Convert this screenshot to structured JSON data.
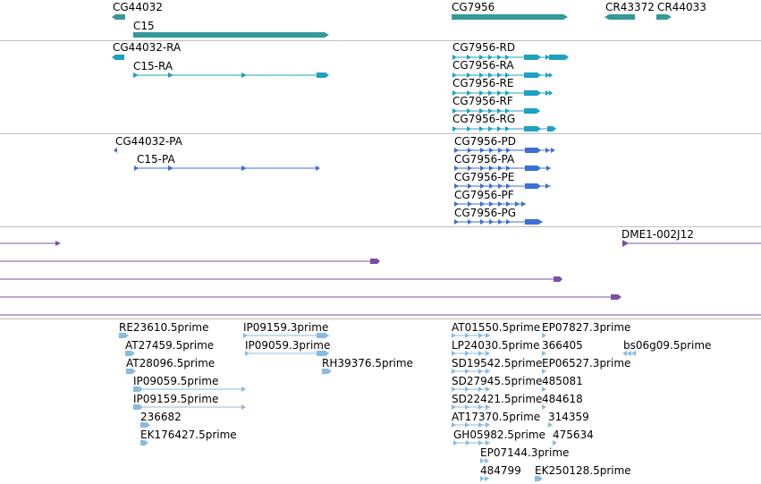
{
  "colors": {
    "gene": "#339999",
    "transcript": "#1fa1c1",
    "protein": "#3a6fd3",
    "alignment": "#7b4fa8",
    "est": "#88bbe0",
    "separator": "#bdbdbd"
  },
  "tracks": {
    "genes": [
      {
        "label": "CG44032",
        "key": "cg44032"
      },
      {
        "label": "C15",
        "key": "c15"
      },
      {
        "label": "CG7956",
        "key": "cg7956"
      },
      {
        "label": "CR43372",
        "key": "cr43372"
      },
      {
        "label": "CR44033",
        "key": "cr44033"
      }
    ],
    "transcripts": [
      {
        "label": "CG44032-RA",
        "key": "cg44032-ra"
      },
      {
        "label": "C15-RA",
        "key": "c15-ra"
      },
      {
        "label": "CG7956-RD",
        "key": "cg7956-rd"
      },
      {
        "label": "CG7956-RA",
        "key": "cg7956-ra"
      },
      {
        "label": "CG7956-RE",
        "key": "cg7956-re"
      },
      {
        "label": "CG7956-RF",
        "key": "cg7956-rf"
      },
      {
        "label": "CG7956-RG",
        "key": "cg7956-rg"
      }
    ],
    "proteins": [
      {
        "label": "CG44032-PA",
        "key": "cg44032-pa"
      },
      {
        "label": "C15-PA",
        "key": "c15-pa"
      },
      {
        "label": "CG7956-PD",
        "key": "cg7956-pd"
      },
      {
        "label": "CG7956-PA",
        "key": "cg7956-pa"
      },
      {
        "label": "CG7956-PE",
        "key": "cg7956-pe"
      },
      {
        "label": "CG7956-PF",
        "key": "cg7956-pf"
      },
      {
        "label": "CG7956-PG",
        "key": "cg7956-pg"
      }
    ],
    "alignments": [
      {
        "label": "DME1-002J12",
        "key": "dme1-002j12"
      }
    ],
    "ests": [
      {
        "label": "RE23610.5prime",
        "key": "re23610"
      },
      {
        "label": "AT27459.5prime",
        "key": "at27459"
      },
      {
        "label": "AT28096.5prime",
        "key": "at28096"
      },
      {
        "label": "IP09059.5prime",
        "key": "ip09059-5"
      },
      {
        "label": "IP09159.5prime",
        "key": "ip09159-5"
      },
      {
        "label": "236682",
        "key": "e236682"
      },
      {
        "label": "EK176427.5prime",
        "key": "ek176427"
      },
      {
        "label": "IP09159.3prime",
        "key": "ip09159-3"
      },
      {
        "label": "IP09059.3prime",
        "key": "ip09059-3"
      },
      {
        "label": "RH39376.5prime",
        "key": "rh39376"
      },
      {
        "label": "AT01550.5prime",
        "key": "at01550"
      },
      {
        "label": "LP24030.5prime",
        "key": "lp24030"
      },
      {
        "label": "SD19542.5prime",
        "key": "sd19542"
      },
      {
        "label": "SD27945.5prime",
        "key": "sd27945"
      },
      {
        "label": "SD22421.5prime",
        "key": "sd22421"
      },
      {
        "label": "AT17370.5prime",
        "key": "at17370"
      },
      {
        "label": "GH05982.5prime",
        "key": "gh05982"
      },
      {
        "label": "EP07144.3prime",
        "key": "ep07144"
      },
      {
        "label": "484799",
        "key": "e484799"
      },
      {
        "label": "EP07827.3prime",
        "key": "ep07827"
      },
      {
        "label": "366405",
        "key": "e366405"
      },
      {
        "label": "EP06527.3prime",
        "key": "ep06527"
      },
      {
        "label": "485081",
        "key": "e485081"
      },
      {
        "label": "484618",
        "key": "e484618"
      },
      {
        "label": "314359",
        "key": "e314359"
      },
      {
        "label": "475634",
        "key": "e475634"
      },
      {
        "label": "EK250128.5prime",
        "key": "ek250128"
      },
      {
        "label": "bs06g09.5prime",
        "key": "bs06g09"
      }
    ]
  }
}
